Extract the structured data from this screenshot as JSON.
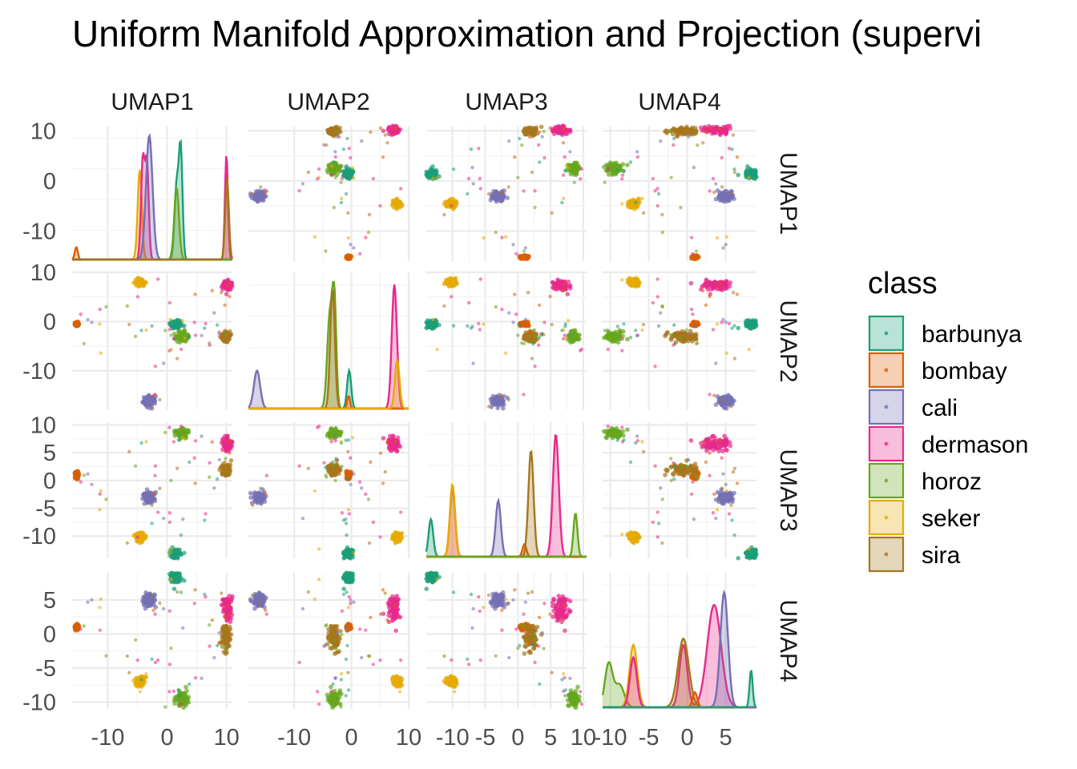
{
  "chart_data": {
    "type": "scatter-matrix",
    "title": "Uniform Manifold Approximation and Projection (supervi",
    "variables": [
      "UMAP1",
      "UMAP2",
      "UMAP3",
      "UMAP4"
    ],
    "axes": {
      "UMAP1": {
        "range": [
          -16,
          11
        ],
        "ticks": [
          -10,
          0,
          10
        ],
        "tick_labels": [
          "-10",
          "0",
          "10"
        ]
      },
      "UMAP2": {
        "range": [
          -18,
          10
        ],
        "ticks": [
          -10,
          0,
          10
        ],
        "tick_labels": [
          "-10",
          "0",
          "10"
        ]
      },
      "UMAP3": {
        "range": [
          -14,
          10.5
        ],
        "ticks": [
          -10,
          -5,
          0,
          5,
          10
        ],
        "tick_labels": [
          "-10",
          "-5",
          "0",
          "5",
          "10"
        ]
      },
      "UMAP4": {
        "range": [
          -11,
          9
        ],
        "ticks": [
          -10,
          -5,
          0,
          5
        ],
        "tick_labels": [
          "-10",
          "-5",
          "0",
          "5"
        ]
      }
    },
    "grid": true,
    "legend": {
      "title": "class",
      "position": "right",
      "entries": [
        {
          "name": "barbunya",
          "color": "#1B9E77"
        },
        {
          "name": "bombay",
          "color": "#D95F02"
        },
        {
          "name": "cali",
          "color": "#7570B3"
        },
        {
          "name": "dermason",
          "color": "#E7298A"
        },
        {
          "name": "horoz",
          "color": "#66A61E"
        },
        {
          "name": "seker",
          "color": "#E6AB02"
        },
        {
          "name": "sira",
          "color": "#A6761D"
        }
      ]
    },
    "clusters": [
      {
        "class": "barbunya",
        "center": [
          1.5,
          -0.5,
          -13.2,
          8.3
        ],
        "spread": [
          0.5,
          0.5,
          0.5,
          0.4
        ]
      },
      {
        "class": "bombay",
        "center": [
          -15.2,
          -0.5,
          1.0,
          1.0
        ],
        "spread": [
          0.15,
          0.2,
          0.3,
          0.2
        ]
      },
      {
        "class": "cali",
        "center": [
          -3.0,
          -16.2,
          -3.0,
          5.0
        ],
        "spread": [
          0.5,
          0.5,
          0.5,
          0.5
        ]
      },
      {
        "class": "dermason",
        "center": [
          10.2,
          7.5,
          6.5,
          3.5
        ],
        "spread": [
          0.4,
          0.5,
          0.5,
          1.0
        ]
      },
      {
        "class": "horoz",
        "center": [
          2.5,
          -3.0,
          8.5,
          -9.5
        ],
        "spread": [
          0.5,
          0.5,
          0.4,
          0.5
        ]
      },
      {
        "class": "seker",
        "center": [
          -4.5,
          8.0,
          -10.0,
          -7.0
        ],
        "spread": [
          0.4,
          0.4,
          0.4,
          0.4
        ]
      },
      {
        "class": "sira",
        "center": [
          10.0,
          -3.0,
          2.0,
          -0.5
        ],
        "spread": [
          0.4,
          0.5,
          0.5,
          1.0
        ]
      }
    ],
    "diagonal_densities": [
      {
        "variable": "UMAP1",
        "curves": [
          {
            "class": "bombay",
            "peaks": [
              [
                -15.3,
                0.1,
                0.25
              ]
            ]
          },
          {
            "class": "seker",
            "peaks": [
              [
                -4.6,
                0.72,
                0.35
              ]
            ]
          },
          {
            "class": "dermason",
            "peaks": [
              [
                -4.1,
                0.8,
                0.3
              ],
              [
                -3.4,
                0.78,
                0.3
              ],
              [
                10.0,
                0.85,
                0.25
              ]
            ]
          },
          {
            "class": "cali",
            "peaks": [
              [
                -3.0,
                1.0,
                0.55
              ]
            ]
          },
          {
            "class": "barbunya",
            "peaks": [
              [
                1.6,
                0.6,
                0.35
              ],
              [
                2.3,
                0.87,
                0.3
              ]
            ]
          },
          {
            "class": "horoz",
            "peaks": [
              [
                1.6,
                0.58,
                0.4
              ]
            ]
          },
          {
            "class": "sira",
            "peaks": [
              [
                10.1,
                0.65,
                0.3
              ]
            ]
          }
        ]
      },
      {
        "variable": "UMAP2",
        "curves": [
          {
            "class": "cali",
            "peaks": [
              [
                -16.5,
                0.3,
                0.55
              ]
            ]
          },
          {
            "class": "horoz",
            "peaks": [
              [
                -3.8,
                0.72,
                0.45
              ],
              [
                -3.0,
                0.85,
                0.35
              ]
            ]
          },
          {
            "class": "sira",
            "peaks": [
              [
                -3.3,
                0.95,
                0.4
              ]
            ]
          },
          {
            "class": "barbunya",
            "peaks": [
              [
                -0.4,
                0.3,
                0.35
              ]
            ]
          },
          {
            "class": "bombay",
            "peaks": [
              [
                -0.5,
                0.1,
                0.25
              ]
            ]
          },
          {
            "class": "dermason",
            "peaks": [
              [
                7.5,
                0.98,
                0.45
              ]
            ]
          },
          {
            "class": "seker",
            "peaks": [
              [
                8.0,
                0.38,
                0.4
              ]
            ]
          }
        ]
      },
      {
        "variable": "UMAP3",
        "curves": [
          {
            "class": "barbunya",
            "peaks": [
              [
                -13.3,
                0.3,
                0.35
              ]
            ]
          },
          {
            "class": "dermason",
            "peaks": [
              [
                -10.0,
                0.55,
                0.4
              ],
              [
                5.8,
                0.98,
                0.45
              ]
            ]
          },
          {
            "class": "seker",
            "peaks": [
              [
                -10.0,
                0.58,
                0.4
              ]
            ]
          },
          {
            "class": "cali",
            "peaks": [
              [
                -3.0,
                0.45,
                0.4
              ]
            ]
          },
          {
            "class": "bombay",
            "peaks": [
              [
                1.0,
                0.1,
                0.3
              ]
            ]
          },
          {
            "class": "sira",
            "peaks": [
              [
                2.0,
                0.85,
                0.4
              ]
            ]
          },
          {
            "class": "horoz",
            "peaks": [
              [
                8.8,
                0.35,
                0.3
              ]
            ]
          }
        ]
      },
      {
        "variable": "UMAP4",
        "curves": [
          {
            "class": "horoz",
            "peaks": [
              [
                -10.2,
                0.35,
                0.5
              ],
              [
                -8.8,
                0.18,
                0.6
              ]
            ]
          },
          {
            "class": "seker",
            "peaks": [
              [
                -7.0,
                0.5,
                0.5
              ]
            ]
          },
          {
            "class": "dermason",
            "peaks": [
              [
                -7.0,
                0.4,
                0.45
              ],
              [
                -0.5,
                0.5,
                0.5
              ],
              [
                3.5,
                0.82,
                0.9
              ]
            ]
          },
          {
            "class": "sira",
            "peaks": [
              [
                -0.5,
                0.55,
                0.7
              ]
            ]
          },
          {
            "class": "bombay",
            "peaks": [
              [
                1.0,
                0.12,
                0.3
              ]
            ]
          },
          {
            "class": "cali",
            "peaks": [
              [
                4.8,
                0.92,
                0.5
              ]
            ]
          },
          {
            "class": "barbunya",
            "peaks": [
              [
                8.3,
                0.3,
                0.2
              ]
            ]
          }
        ]
      }
    ]
  }
}
